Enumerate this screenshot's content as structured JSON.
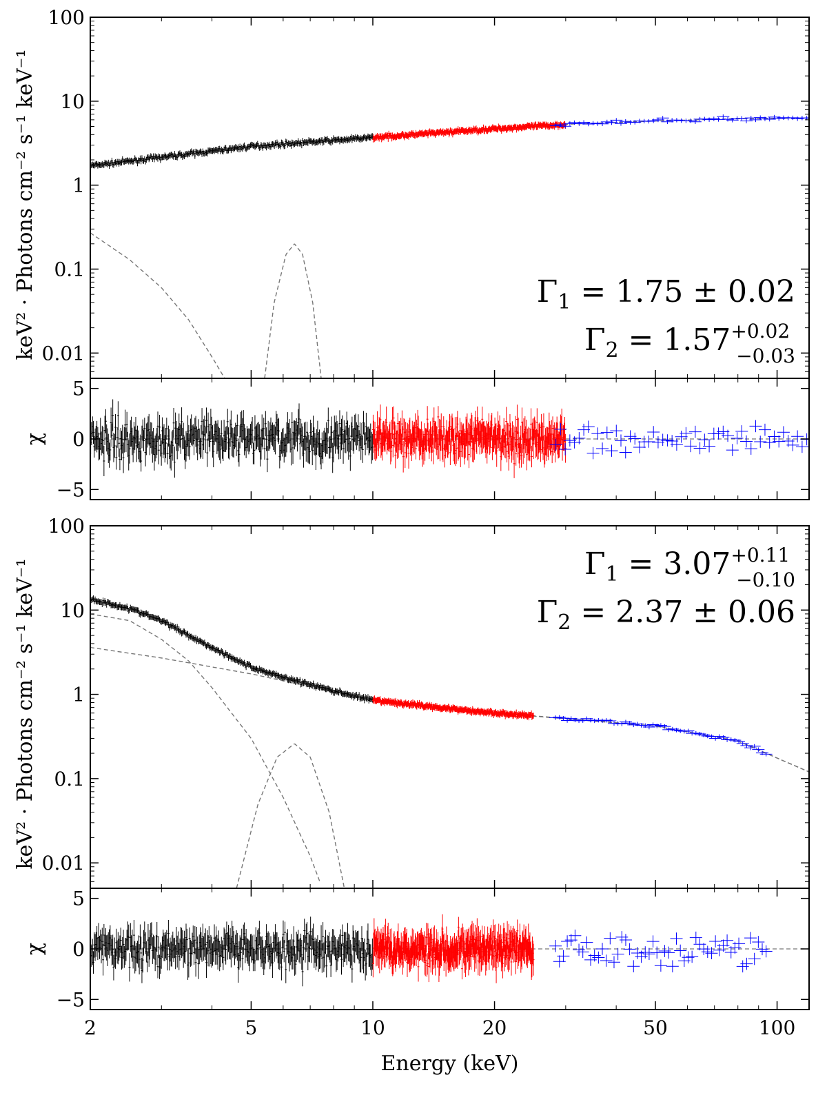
{
  "chart_data": [
    {
      "type": "scatter",
      "panel": "upper-spectrum",
      "ylabel": "keV² · Photons cm⁻² s⁻¹ keV⁻¹",
      "xscale": "log",
      "yscale": "log",
      "xlim": [
        2,
        120
      ],
      "ylim": [
        0.005,
        100
      ],
      "yticks": [
        0.01,
        0.1,
        1,
        10,
        100
      ],
      "ytick_labels": [
        "0.01",
        "0.1",
        "1",
        "10",
        "100"
      ],
      "annotations": [
        "Γ₁ = 1.75 ± 0.02",
        "Γ₂ = 1.57 (+0.02/−0.03)"
      ],
      "annotation_parts": [
        {
          "sym": "Γ",
          "sub": "1",
          "eq": " = 1.75 ± 0.02",
          "sup": "",
          "low": ""
        },
        {
          "sym": "Γ",
          "sub": "2",
          "eq": " = 1.57",
          "sup": "+0.02",
          "low": "−0.03"
        }
      ],
      "series": [
        {
          "name": "instrument-1",
          "color": "#000000",
          "x_range": [
            2,
            10
          ],
          "y_range": [
            2.2,
            3.7
          ]
        },
        {
          "name": "instrument-2",
          "color": "#ff0000",
          "x_range": [
            10,
            30
          ],
          "y_range": [
            3.6,
            5.5
          ]
        },
        {
          "name": "instrument-3",
          "color": "#0000ff",
          "x_range": [
            28,
            120
          ],
          "y_range": [
            5.6,
            6.0
          ]
        }
      ],
      "models": [
        {
          "name": "total-model",
          "points": [
            [
              2,
              1.7
            ],
            [
              5,
              2.9
            ],
            [
              10,
              3.7
            ],
            [
              20,
              4.7
            ],
            [
              30,
              5.3
            ],
            [
              50,
              5.8
            ],
            [
              80,
              6.2
            ],
            [
              120,
              6.3
            ]
          ]
        },
        {
          "name": "soft-component",
          "points": [
            [
              2,
              0.27
            ],
            [
              2.5,
              0.13
            ],
            [
              3,
              0.06
            ],
            [
              3.5,
              0.025
            ],
            [
              4,
              0.009
            ],
            [
              4.3,
              0.005
            ]
          ]
        },
        {
          "name": "line-component",
          "points": [
            [
              5.4,
              0.005
            ],
            [
              5.7,
              0.04
            ],
            [
              6.1,
              0.15
            ],
            [
              6.4,
              0.2
            ],
            [
              6.7,
              0.15
            ],
            [
              7.1,
              0.04
            ],
            [
              7.45,
              0.005
            ]
          ]
        }
      ]
    },
    {
      "type": "scatter",
      "panel": "upper-residuals",
      "ylabel": "χ",
      "xscale": "log",
      "xlim": [
        2,
        120
      ],
      "ylim": [
        -6,
        6
      ],
      "yticks": [
        -5,
        0,
        5
      ],
      "ytick_labels": [
        "−5",
        "0",
        "5"
      ],
      "series": [
        {
          "name": "instrument-1",
          "color": "#000000",
          "x_range": [
            2,
            10
          ],
          "scatter": 1.3
        },
        {
          "name": "instrument-2",
          "color": "#ff0000",
          "x_range": [
            10,
            30
          ],
          "scatter": 1.2
        },
        {
          "name": "instrument-3",
          "color": "#0000ff",
          "x_range": [
            28,
            120
          ],
          "scatter": 1.1
        }
      ]
    },
    {
      "type": "scatter",
      "panel": "lower-spectrum",
      "ylabel": "keV² · Photons cm⁻² s⁻¹ keV⁻¹",
      "xscale": "log",
      "yscale": "log",
      "xlim": [
        2,
        120
      ],
      "ylim": [
        0.005,
        100
      ],
      "yticks": [
        0.01,
        0.1,
        1,
        10,
        100
      ],
      "ytick_labels": [
        "0.01",
        "0.1",
        "1",
        "10",
        "100"
      ],
      "annotations": [
        "Γ₁ = 3.07 (+0.11/−0.10)",
        "Γ₂ = 2.37 ± 0.06"
      ],
      "annotation_parts": [
        {
          "sym": "Γ",
          "sub": "1",
          "eq": " = 3.07",
          "sup": "+0.11",
          "low": "−0.10"
        },
        {
          "sym": "Γ",
          "sub": "2",
          "eq": " = 2.37 ± 0.06",
          "sup": "",
          "low": ""
        }
      ],
      "series": [
        {
          "name": "instrument-1",
          "color": "#000000",
          "x_range": [
            2,
            10
          ]
        },
        {
          "name": "instrument-2",
          "color": "#ff0000",
          "x_range": [
            10,
            25
          ]
        },
        {
          "name": "instrument-3",
          "color": "#0000ff",
          "x_range": [
            28,
            95
          ]
        }
      ],
      "models": [
        {
          "name": "total-model",
          "points": [
            [
              2,
              13.5
            ],
            [
              2.5,
              10.5
            ],
            [
              3,
              7.5
            ],
            [
              4,
              3.6
            ],
            [
              5,
              2.1
            ],
            [
              6,
              1.6
            ],
            [
              8,
              1.1
            ],
            [
              10,
              0.85
            ],
            [
              20,
              0.6
            ],
            [
              30,
              0.52
            ],
            [
              50,
              0.42
            ],
            [
              80,
              0.28
            ],
            [
              120,
              0.12
            ]
          ]
        },
        {
          "name": "soft-component",
          "points": [
            [
              2,
              9
            ],
            [
              2.5,
              7.5
            ],
            [
              3,
              4.5
            ],
            [
              3.5,
              2.5
            ],
            [
              4,
              1.2
            ],
            [
              5,
              0.3
            ],
            [
              6,
              0.06
            ],
            [
              7,
              0.012
            ],
            [
              7.5,
              0.005
            ]
          ]
        },
        {
          "name": "powerlaw-component",
          "points": [
            [
              2,
              3.6
            ],
            [
              3,
              2.7
            ],
            [
              5,
              1.75
            ],
            [
              10,
              0.85
            ],
            [
              20,
              0.6
            ],
            [
              50,
              0.42
            ],
            [
              80,
              0.28
            ],
            [
              120,
              0.12
            ]
          ]
        },
        {
          "name": "line-component",
          "points": [
            [
              4.6,
              0.005
            ],
            [
              5.2,
              0.05
            ],
            [
              5.8,
              0.18
            ],
            [
              6.4,
              0.26
            ],
            [
              7,
              0.18
            ],
            [
              7.8,
              0.04
            ],
            [
              8.5,
              0.005
            ]
          ]
        }
      ]
    },
    {
      "type": "scatter",
      "panel": "lower-residuals",
      "ylabel": "χ",
      "xscale": "log",
      "xlabel": "Energy (keV)",
      "xlim": [
        2,
        120
      ],
      "ylim": [
        -6,
        6
      ],
      "yticks": [
        -5,
        0,
        5
      ],
      "ytick_labels": [
        "−5",
        "0",
        "5"
      ],
      "xticks": [
        2,
        5,
        10,
        20,
        50,
        100
      ],
      "xtick_labels": [
        "2",
        "5",
        "10",
        "20",
        "50",
        "100"
      ],
      "series": [
        {
          "name": "instrument-1",
          "color": "#000000",
          "x_range": [
            2,
            10
          ],
          "scatter": 1.2
        },
        {
          "name": "instrument-2",
          "color": "#ff0000",
          "x_range": [
            10,
            25
          ],
          "scatter": 1.1
        },
        {
          "name": "instrument-3",
          "color": "#0000ff",
          "x_range": [
            28,
            95
          ],
          "scatter": 1.3
        }
      ]
    }
  ]
}
